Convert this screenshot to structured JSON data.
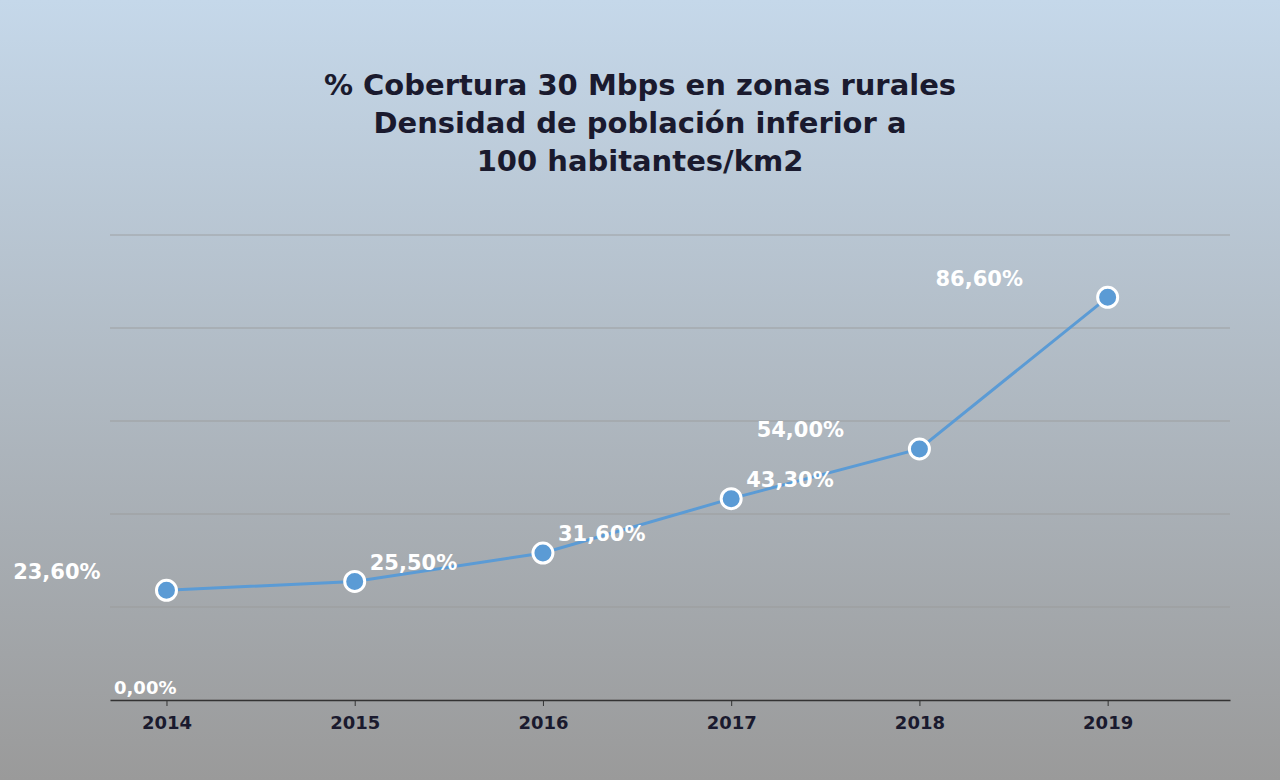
{
  "chart_data": {
    "type": "line",
    "title": "% Cobertura 30 Mbps en zonas rurales\nDensidad de población inferior a\n100 habitantes/km2",
    "x": [
      2014,
      2015,
      2016,
      2017,
      2018,
      2019
    ],
    "values": [
      23.6,
      25.5,
      31.6,
      43.3,
      54.0,
      86.6
    ],
    "value_labels": [
      "23,60%",
      "25,50%",
      "31,60%",
      "43,30%",
      "54,00%",
      "86,60%"
    ],
    "data_labels": true,
    "color": "#5b9bd5",
    "marker": "circle",
    "xlim": [
      2013.7,
      2019.65
    ],
    "xticks": [
      2014,
      2015,
      2016,
      2017,
      2018,
      2019
    ],
    "ylim": [
      0,
      100
    ],
    "yticks": [
      0,
      20,
      40,
      60,
      80,
      100
    ],
    "grid": true,
    "tick_labels": "x",
    "annotations": [
      "0,00%"
    ]
  }
}
